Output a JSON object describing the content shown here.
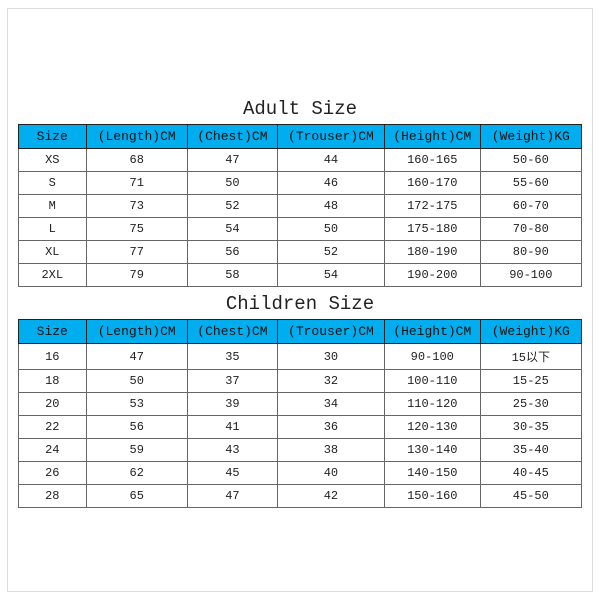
{
  "colors": {
    "header_bg": "#00AEEF",
    "header_text": "#111111",
    "cell_text": "#222222",
    "border_outer": "#dcdcdc",
    "border_header": "#222222",
    "border_cell": "#666666",
    "page_bg": "#ffffff"
  },
  "typography": {
    "title_font": "Courier New, monospace",
    "title_size_pt": 15,
    "header_font": "Courier New, monospace",
    "header_size_pt": 10,
    "cell_font": "Courier New, monospace",
    "cell_size_pt": 9
  },
  "adult": {
    "title": "Adult Size",
    "columns": [
      "Size",
      "(Length)CM",
      "(Chest)CM",
      "(Trouser)CM",
      "(Height)CM",
      "(Weight)KG"
    ],
    "rows": [
      [
        "XS",
        "68",
        "47",
        "44",
        "160-165",
        "50-60"
      ],
      [
        "S",
        "71",
        "50",
        "46",
        "160-170",
        "55-60"
      ],
      [
        "M",
        "73",
        "52",
        "48",
        "172-175",
        "60-70"
      ],
      [
        "L",
        "75",
        "54",
        "50",
        "175-180",
        "70-80"
      ],
      [
        "XL",
        "77",
        "56",
        "52",
        "180-190",
        "80-90"
      ],
      [
        "2XL",
        "79",
        "58",
        "54",
        "190-200",
        "90-100"
      ]
    ]
  },
  "children": {
    "title": "Children Size",
    "columns": [
      "Size",
      "(Length)CM",
      "(Chest)CM",
      "(Trouser)CM",
      "(Height)CM",
      "(Weight)KG"
    ],
    "rows": [
      [
        "16",
        "47",
        "35",
        "30",
        "90-100",
        "15以下"
      ],
      [
        "18",
        "50",
        "37",
        "32",
        "100-110",
        "15-25"
      ],
      [
        "20",
        "53",
        "39",
        "34",
        "110-120",
        "25-30"
      ],
      [
        "22",
        "56",
        "41",
        "36",
        "120-130",
        "30-35"
      ],
      [
        "24",
        "59",
        "43",
        "38",
        "130-140",
        "35-40"
      ],
      [
        "26",
        "62",
        "45",
        "40",
        "140-150",
        "40-45"
      ],
      [
        "28",
        "65",
        "47",
        "42",
        "150-160",
        "45-50"
      ]
    ]
  }
}
